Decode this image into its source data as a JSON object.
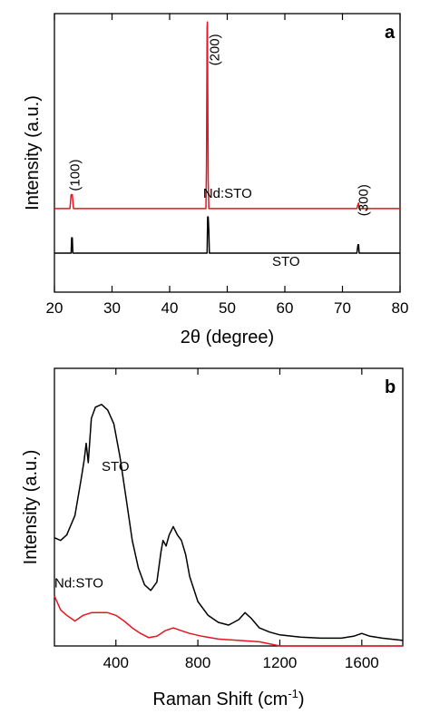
{
  "chart_data": [
    {
      "type": "line",
      "panel_label": "a",
      "xlabel": "2θ (degree)",
      "ylabel": "Intensity (a.u.)",
      "xlim": [
        20,
        80
      ],
      "x_ticks": [
        20,
        30,
        40,
        50,
        60,
        70,
        80
      ],
      "y_ticks_shown": false,
      "ylim": [
        0,
        100
      ],
      "series": [
        {
          "name": "Nd:STO",
          "color": "#e8141e",
          "baseline": 30,
          "x": [
            20,
            22.7,
            22.9,
            23.0,
            23.1,
            23.3,
            46.3,
            46.4,
            46.5,
            46.55,
            46.6,
            46.7,
            46.8,
            72.5,
            72.7,
            72.8,
            72.9,
            80
          ],
          "values": [
            30,
            30,
            35,
            35,
            35,
            30,
            30,
            45,
            95,
            97,
            80,
            40,
            30,
            30,
            31.5,
            32,
            30,
            30
          ]
        },
        {
          "name": "STO",
          "color": "#000000",
          "baseline": 14,
          "x": [
            20,
            22.9,
            23.0,
            23.1,
            23.2,
            46.5,
            46.6,
            46.7,
            46.8,
            46.9,
            72.5,
            72.7,
            72.8,
            72.9,
            80
          ],
          "values": [
            14,
            14,
            19.5,
            19.5,
            14,
            14,
            27,
            27,
            22,
            14,
            14,
            17,
            17,
            14,
            14
          ]
        }
      ],
      "series_labels": [
        {
          "text": "Nd:STO",
          "x": 45.8,
          "y": 33.8
        },
        {
          "text": "STO",
          "x": 57.8,
          "y": 9.5
        }
      ],
      "peak_labels": [
        {
          "text": "(100)",
          "x": 24.3,
          "y": 42
        },
        {
          "text": "(200)",
          "x": 48.6,
          "y": 87
        },
        {
          "text": "(300)",
          "x": 74.4,
          "y": 33
        }
      ]
    },
    {
      "type": "line",
      "panel_label": "b",
      "xlabel": "Raman Shift (cm",
      "xlabel_superscript": "-1",
      "xlabel_suffix": ")",
      "ylabel": "Intensity (a.u.)",
      "xlim": [
        100,
        1800
      ],
      "x_ticks": [
        400,
        800,
        1200,
        1600
      ],
      "y_ticks_shown": false,
      "ylim": [
        0,
        100
      ],
      "series": [
        {
          "name": "STO",
          "color": "#000000",
          "x": [
            100,
            130,
            160,
            200,
            230,
            245,
            255,
            265,
            280,
            300,
            330,
            360,
            390,
            420,
            450,
            480,
            510,
            540,
            570,
            600,
            620,
            630,
            645,
            660,
            680,
            700,
            720,
            740,
            760,
            800,
            850,
            900,
            950,
            1000,
            1030,
            1060,
            1100,
            1150,
            1200,
            1300,
            1400,
            1500,
            1560,
            1600,
            1640,
            1700,
            1800
          ],
          "values": [
            39,
            38,
            40,
            47,
            60,
            67,
            73,
            66,
            82,
            86,
            87,
            85,
            80,
            68,
            53,
            38,
            28,
            22,
            20,
            23,
            34,
            38,
            36,
            40,
            43,
            40,
            38,
            33,
            25,
            16,
            11,
            8.5,
            7.5,
            9.5,
            12,
            10,
            6.5,
            5,
            4,
            3.2,
            2.8,
            2.8,
            3.5,
            4.5,
            3.5,
            2.8,
            2
          ]
        },
        {
          "name": "Nd:STO",
          "color": "#e8141e",
          "x": [
            100,
            130,
            160,
            200,
            240,
            280,
            320,
            360,
            400,
            440,
            480,
            520,
            560,
            600,
            640,
            680,
            720,
            760,
            820,
            900,
            1000,
            1100,
            1200,
            1400,
            1600,
            1800
          ],
          "values": [
            18,
            13,
            11,
            9,
            11,
            12,
            12,
            12,
            11,
            9,
            6.5,
            4.5,
            3,
            3.5,
            5.5,
            6.5,
            5.5,
            4.5,
            3.5,
            2.5,
            2,
            1.5,
            0,
            0,
            0,
            0
          ]
        }
      ],
      "series_labels": [
        {
          "text": "STO",
          "x": 330,
          "y": 63
        },
        {
          "text": "Nd:STO",
          "x": 100,
          "y": 21
        }
      ]
    }
  ]
}
